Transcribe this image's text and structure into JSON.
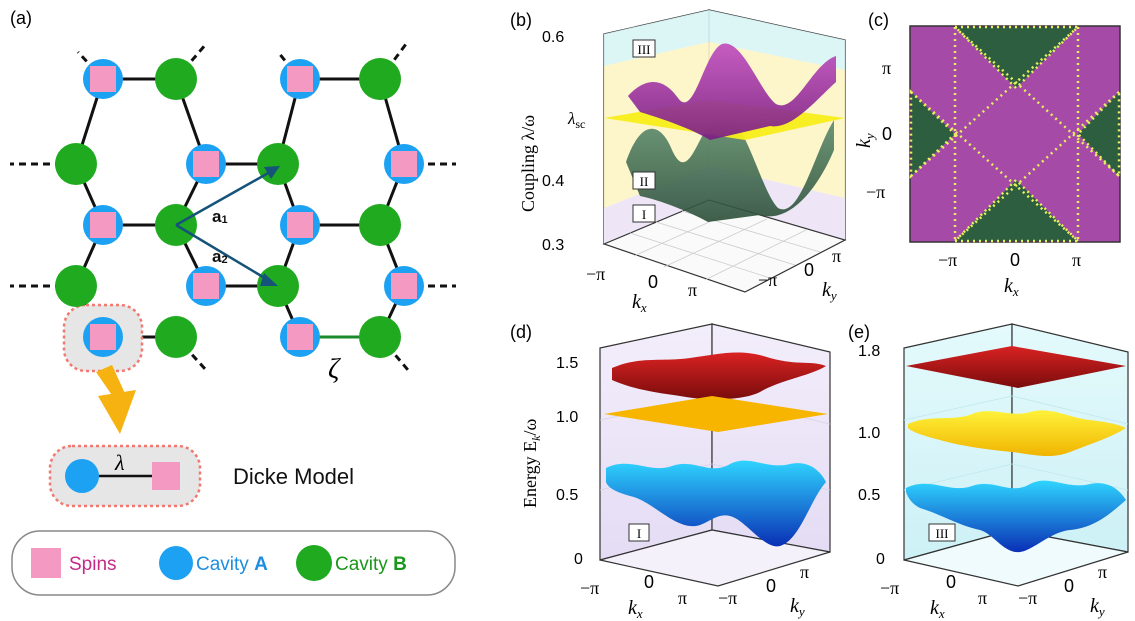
{
  "panels": {
    "a": "(a)",
    "b": "(b)",
    "c": "(c)",
    "d": "(d)",
    "e": "(e)"
  },
  "panel_a": {
    "vec_a1": "a",
    "vec_a1_sub": "1",
    "vec_a2": "a",
    "vec_a2_sub": "2",
    "zeta": "ζ",
    "lambda": "λ",
    "dicke_label": "Dicke Model",
    "legend": {
      "spins": "Spins",
      "cavity_a_prefix": "Cavity ",
      "cavity_a_letter": "A",
      "cavity_b_prefix": "Cavity ",
      "cavity_b_letter": "B"
    },
    "colors": {
      "spin": "#f49ac2",
      "cavity_a": "#1da1f2",
      "cavity_b": "#1faa1f",
      "arrow": "#15537a",
      "highlight": "#f07a72",
      "down_arrow": "#f5b211"
    }
  },
  "panel_b": {
    "ylabel": "Coupling λ/ω",
    "yticks": [
      "0.6",
      "0.4",
      "0.3"
    ],
    "lambda_sc": "λ",
    "lambda_sc_sub": "sc",
    "regions": [
      "III",
      "II",
      "I"
    ],
    "xticks": [
      "−π",
      "0",
      "π"
    ],
    "yticks_k": [
      "−π",
      "0",
      "π"
    ],
    "xlabel": "k",
    "xlabel_sub": "x",
    "klabel": "k",
    "klabel_sub": "y"
  },
  "panel_c": {
    "yticks": [
      "π",
      "0",
      "−π"
    ],
    "xticks": [
      "−π",
      "0",
      "π"
    ],
    "xlabel": "k",
    "xlabel_sub": "x",
    "ylabel": "k",
    "ylabel_sub": "y",
    "colors": {
      "region_a": "#a64aa8",
      "region_b": "#2e5e40",
      "boundary": "#e8f060"
    }
  },
  "panel_d": {
    "ylabel": "Energy E",
    "ylabel_sub": "k",
    "ylabel_suffix": "/ω",
    "yticks": [
      "1.5",
      "1.0",
      "0.5",
      "0"
    ],
    "region": "I",
    "xticks": [
      "−π",
      "0",
      "π"
    ],
    "yticks_k": [
      "−π",
      "0",
      "π"
    ],
    "xlabel": "k",
    "xlabel_sub": "x",
    "klabel": "k",
    "klabel_sub": "y"
  },
  "panel_e": {
    "yticks": [
      "1.8",
      "1.0",
      "0.5",
      "0"
    ],
    "region": "III",
    "xticks": [
      "−π",
      "0",
      "π"
    ],
    "yticks_k": [
      "−π",
      "0",
      "π"
    ],
    "xlabel": "k",
    "xlabel_sub": "x",
    "klabel": "k",
    "klabel_sub": "y"
  }
}
